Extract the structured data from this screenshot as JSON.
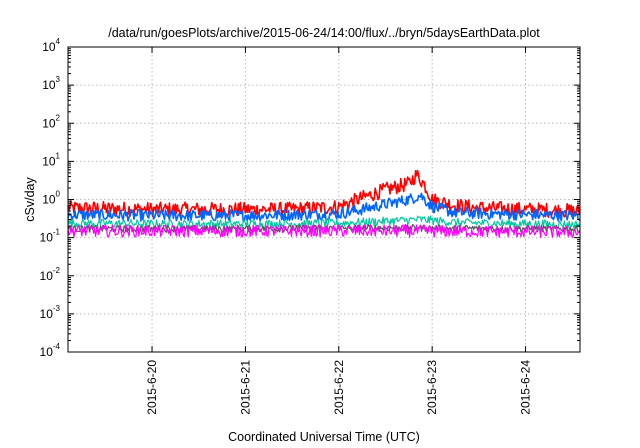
{
  "chart_data": {
    "type": "line",
    "title": "/data/run/goesPlots/archive/2015-06-24/14:00/flux/../bryn/5daysEarthData.plot",
    "xlabel": "Coordinated Universal Time (UTC)",
    "ylabel": "cSv/day",
    "y_scale": "log",
    "ylim": [
      0.0001,
      10000
    ],
    "y_ticks": [
      {
        "base": "10",
        "exp": "-4"
      },
      {
        "base": "10",
        "exp": "-3"
      },
      {
        "base": "10",
        "exp": "-2"
      },
      {
        "base": "10",
        "exp": "-1"
      },
      {
        "base": "10",
        "exp": "0"
      },
      {
        "base": "10",
        "exp": "1"
      },
      {
        "base": "10",
        "exp": "2"
      },
      {
        "base": "10",
        "exp": "3"
      },
      {
        "base": "10",
        "exp": "4"
      }
    ],
    "xlim": [
      "2015-06-19 02:24",
      "2015-06-24 14:00"
    ],
    "x_ticks": [
      "2015-6-20",
      "2015-6-21",
      "2015-6-22",
      "2015-6-23",
      "2015-6-24"
    ],
    "grid": true,
    "legend": "none",
    "series": [
      {
        "color": "#ff0000",
        "x": [
          "2015-06-19 02:24",
          "2015-06-20 00:00",
          "2015-06-21 00:00",
          "2015-06-21 12:00",
          "2015-06-22 00:00",
          "2015-06-22 06:00",
          "2015-06-22 12:00",
          "2015-06-22 18:00",
          "2015-06-22 20:00",
          "2015-06-22 22:00",
          "2015-06-23 00:00",
          "2015-06-23 06:00",
          "2015-06-23 12:00",
          "2015-06-24 00:00",
          "2015-06-24 14:00"
        ],
        "values": [
          0.6,
          0.55,
          0.55,
          0.55,
          0.65,
          1.1,
          1.8,
          2.6,
          4.5,
          2.5,
          1.0,
          0.7,
          0.6,
          0.55,
          0.5
        ]
      },
      {
        "color": "#0066ff",
        "x": [
          "2015-06-19 02:24",
          "2015-06-20 00:00",
          "2015-06-21 00:00",
          "2015-06-22 00:00",
          "2015-06-22 06:00",
          "2015-06-22 12:00",
          "2015-06-22 18:00",
          "2015-06-22 21:00",
          "2015-06-23 00:00",
          "2015-06-23 06:00",
          "2015-06-24 00:00",
          "2015-06-24 14:00"
        ],
        "values": [
          0.4,
          0.38,
          0.38,
          0.42,
          0.55,
          0.75,
          1.0,
          1.3,
          0.65,
          0.45,
          0.4,
          0.38
        ]
      },
      {
        "color": "#00c8a0",
        "x": [
          "2015-06-19 02:24",
          "2015-06-20 00:00",
          "2015-06-21 00:00",
          "2015-06-22 00:00",
          "2015-06-22 12:00",
          "2015-06-22 21:00",
          "2015-06-23 06:00",
          "2015-06-24 00:00",
          "2015-06-24 14:00"
        ],
        "values": [
          0.24,
          0.23,
          0.23,
          0.24,
          0.27,
          0.3,
          0.25,
          0.23,
          0.22
        ]
      },
      {
        "color": "#555555",
        "x": [
          "2015-06-19 02:24",
          "2015-06-21 00:00",
          "2015-06-22 12:00",
          "2015-06-24 14:00"
        ],
        "values": [
          0.17,
          0.17,
          0.18,
          0.17
        ]
      },
      {
        "color": "#ff00ff",
        "x": [
          "2015-06-19 02:24",
          "2015-06-21 00:00",
          "2015-06-22 12:00",
          "2015-06-24 14:00"
        ],
        "values": [
          0.15,
          0.15,
          0.15,
          0.14
        ]
      }
    ]
  }
}
